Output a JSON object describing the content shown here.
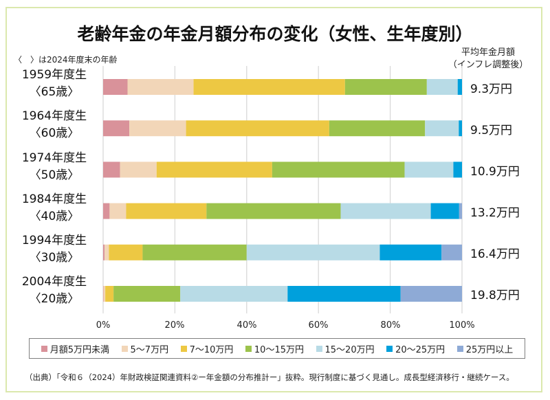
{
  "chart_data": {
    "type": "bar",
    "orientation": "horizontal",
    "stacked": "percent",
    "title": "老齢年金の年金月額分布の変化（女性、生年度別）",
    "note": "〈　〉は2024年度末の年齢",
    "xlabel": "",
    "ylabel": "",
    "xlim": [
      0,
      100
    ],
    "x_ticks": [
      "0%",
      "20%",
      "40%",
      "60%",
      "80%",
      "100%"
    ],
    "grid": "vertical",
    "legend_position": "bottom",
    "categories": [
      {
        "cohort": "1959年度生",
        "age": "〈65歳〉"
      },
      {
        "cohort": "1964年度生",
        "age": "〈60歳〉"
      },
      {
        "cohort": "1974年度生",
        "age": "〈50歳〉"
      },
      {
        "cohort": "1984年度生",
        "age": "〈40歳〉"
      },
      {
        "cohort": "1994年度生",
        "age": "〈30歳〉"
      },
      {
        "cohort": "2004年度生",
        "age": "〈20歳〉"
      }
    ],
    "series": [
      {
        "name": "月額5万円未満",
        "color": "#d9929a",
        "values": [
          6.8,
          7.3,
          4.7,
          1.8,
          0.4,
          0.1
        ]
      },
      {
        "name": "5～7万円",
        "color": "#f2d6b8",
        "values": [
          18.4,
          15.8,
          10.2,
          4.6,
          1.2,
          0.5
        ]
      },
      {
        "name": "7～10万円",
        "color": "#edc843",
        "values": [
          42.2,
          39.9,
          32.2,
          22.4,
          9.4,
          2.3
        ]
      },
      {
        "name": "10～15万円",
        "color": "#9cc34c",
        "values": [
          22.8,
          26.7,
          36.9,
          37.4,
          29.0,
          18.6
        ]
      },
      {
        "name": "15～20万円",
        "color": "#b8dbe6",
        "values": [
          8.6,
          9.4,
          13.6,
          25.1,
          37.1,
          29.9
        ]
      },
      {
        "name": "20～25万円",
        "color": "#00a0dc",
        "values": [
          1.2,
          0.9,
          2.4,
          7.9,
          17.2,
          31.5
        ]
      },
      {
        "name": "25万円以上",
        "color": "#8eaad6",
        "values": [
          0.0,
          0.0,
          0.0,
          0.8,
          5.7,
          17.1
        ]
      }
    ],
    "side_header": [
      "平均年金月額",
      "（インフレ調整後）"
    ],
    "average_monthly_pension": [
      "9.3万円",
      "9.5万円",
      "10.9万円",
      "13.2万円",
      "16.4万円",
      "19.8万円"
    ]
  },
  "source": "（出典）「令和６（2024）年財政検証関連資料②ー年金額の分布推計ー」抜粋。現行制度に基づく見通し。成長型経済移行・継続ケース。"
}
